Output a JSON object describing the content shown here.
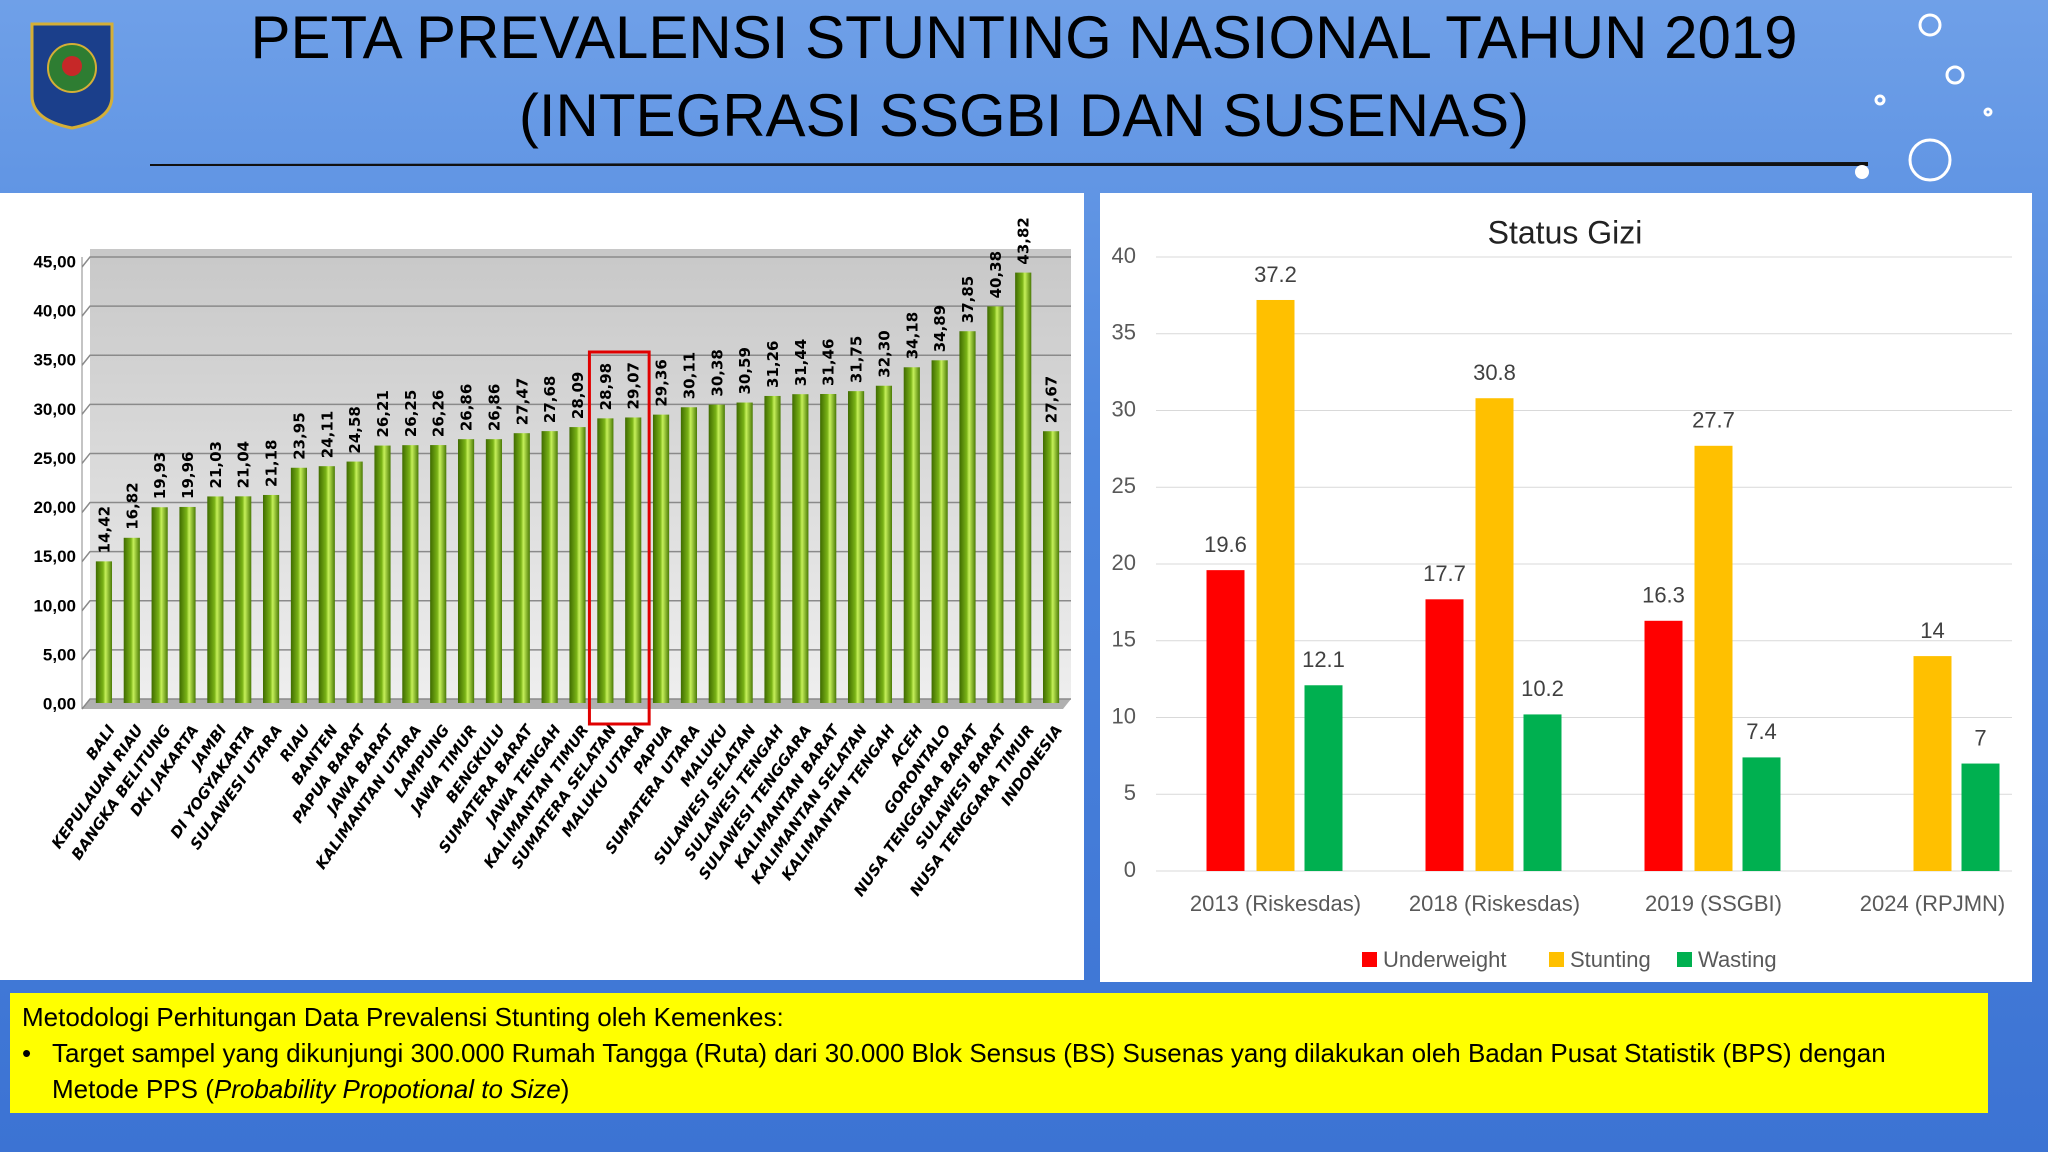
{
  "header": {
    "title_line1": "PETA PREVALENSI STUNTING NASIONAL TAHUN 2019",
    "title_line2": "(INTEGRASI SSGBI DAN SUSENAS)"
  },
  "chart_data": [
    {
      "type": "bar",
      "color": "#7ab317",
      "categories": [
        "BALI",
        "KEPULAUAN RIAU",
        "BANGKA BELITUNG",
        "DKI JAKARTA",
        "JAMBI",
        "DI YOGYAKARTA",
        "SULAWESI UTARA",
        "RIAU",
        "BANTEN",
        "PAPUA BARAT",
        "JAWA BARAT",
        "KALIMANTAN UTARA",
        "LAMPUNG",
        "JAWA TIMUR",
        "BENGKULU",
        "SUMATERA BARAT",
        "JAWA TENGAH",
        "KALIMANTAN TIMUR",
        "SUMATERA SELATAN",
        "MALUKU UTARA",
        "PAPUA",
        "SUMATERA UTARA",
        "MALUKU",
        "SULAWESI SELATAN",
        "SULAWESI TENGAH",
        "SULAWESI TENGGARA",
        "KALIMANTAN BARAT",
        "KALIMANTAN SELATAN",
        "KALIMANTAN TENGAH",
        "ACEH",
        "GORONTALO",
        "NUSA TENGGARA BARAT",
        "SULAWESI BARAT",
        "NUSA TENGGARA TIMUR",
        "INDONESIA"
      ],
      "values": [
        14.42,
        16.82,
        19.93,
        19.96,
        21.03,
        21.04,
        21.18,
        23.95,
        24.11,
        24.58,
        26.21,
        26.25,
        26.26,
        26.86,
        26.86,
        27.47,
        27.68,
        28.09,
        28.98,
        29.07,
        29.36,
        30.11,
        30.38,
        30.59,
        31.26,
        31.44,
        31.46,
        31.75,
        32.3,
        34.18,
        34.89,
        37.85,
        40.38,
        43.82,
        27.67
      ],
      "value_labels": [
        "14,42",
        "16,82",
        "19,93",
        "19,96",
        "21,03",
        "21,04",
        "21,18",
        "23,95",
        "24,11",
        "24,58",
        "26,21",
        "26,25",
        "26,26",
        "26,86",
        "26,86",
        "27,47",
        "27,68",
        "28,09",
        "28,98",
        "29,07",
        "29,36",
        "30,11",
        "30,38",
        "30,59",
        "31,26",
        "31,44",
        "31,46",
        "31,75",
        "32,30",
        "34,18",
        "34,89",
        "37,85",
        "40,38",
        "43,82",
        "27,67"
      ],
      "ylim": [
        0,
        45
      ],
      "yticks": [
        {
          "value": 0,
          "label": "0,00"
        },
        {
          "value": 5,
          "label": "5,00"
        },
        {
          "value": 10,
          "label": "10,00"
        },
        {
          "value": 15,
          "label": "15,00"
        },
        {
          "value": 20,
          "label": "20,00"
        },
        {
          "value": 25,
          "label": "25,00"
        },
        {
          "value": 30,
          "label": "30,00"
        },
        {
          "value": 35,
          "label": "35,00"
        },
        {
          "value": 40,
          "label": "40,00"
        },
        {
          "value": 45,
          "label": "45,00"
        }
      ],
      "grid": true
    },
    {
      "type": "bar",
      "title": "Status Gizi",
      "categories": [
        "2013 (Riskesdas)",
        "2018 (Riskesdas)",
        "2019 (SSGBI)",
        "2024 (RPJMN)"
      ],
      "series": [
        {
          "name": "Underweight",
          "color": "#ff0000",
          "values": [
            19.6,
            17.7,
            16.3,
            null
          ]
        },
        {
          "name": "Stunting",
          "color": "#ffc000",
          "values": [
            37.2,
            30.8,
            27.7,
            14
          ]
        },
        {
          "name": "Wasting",
          "color": "#00b050",
          "values": [
            12.1,
            10.2,
            7.4,
            7
          ]
        }
      ],
      "ylim": [
        0,
        40
      ],
      "yticks": [
        0,
        5,
        10,
        15,
        20,
        25,
        30,
        35,
        40
      ],
      "grid": true,
      "legend": "bottom"
    }
  ],
  "footer": {
    "heading": "Metodologi Perhitungan Data Prevalensi Stunting oleh Kemenkes:",
    "bullet_text": "Target sampel yang dikunjungi 300.000 Rumah Tangga (Ruta) dari 30.000 Blok Sensus (BS)  Susenas yang dilakukan oleh Badan Pusat Statistik (BPS) dengan Metode PPS (",
    "bullet_italic": "Probability Propotional to Size",
    "bullet_end": ")"
  }
}
